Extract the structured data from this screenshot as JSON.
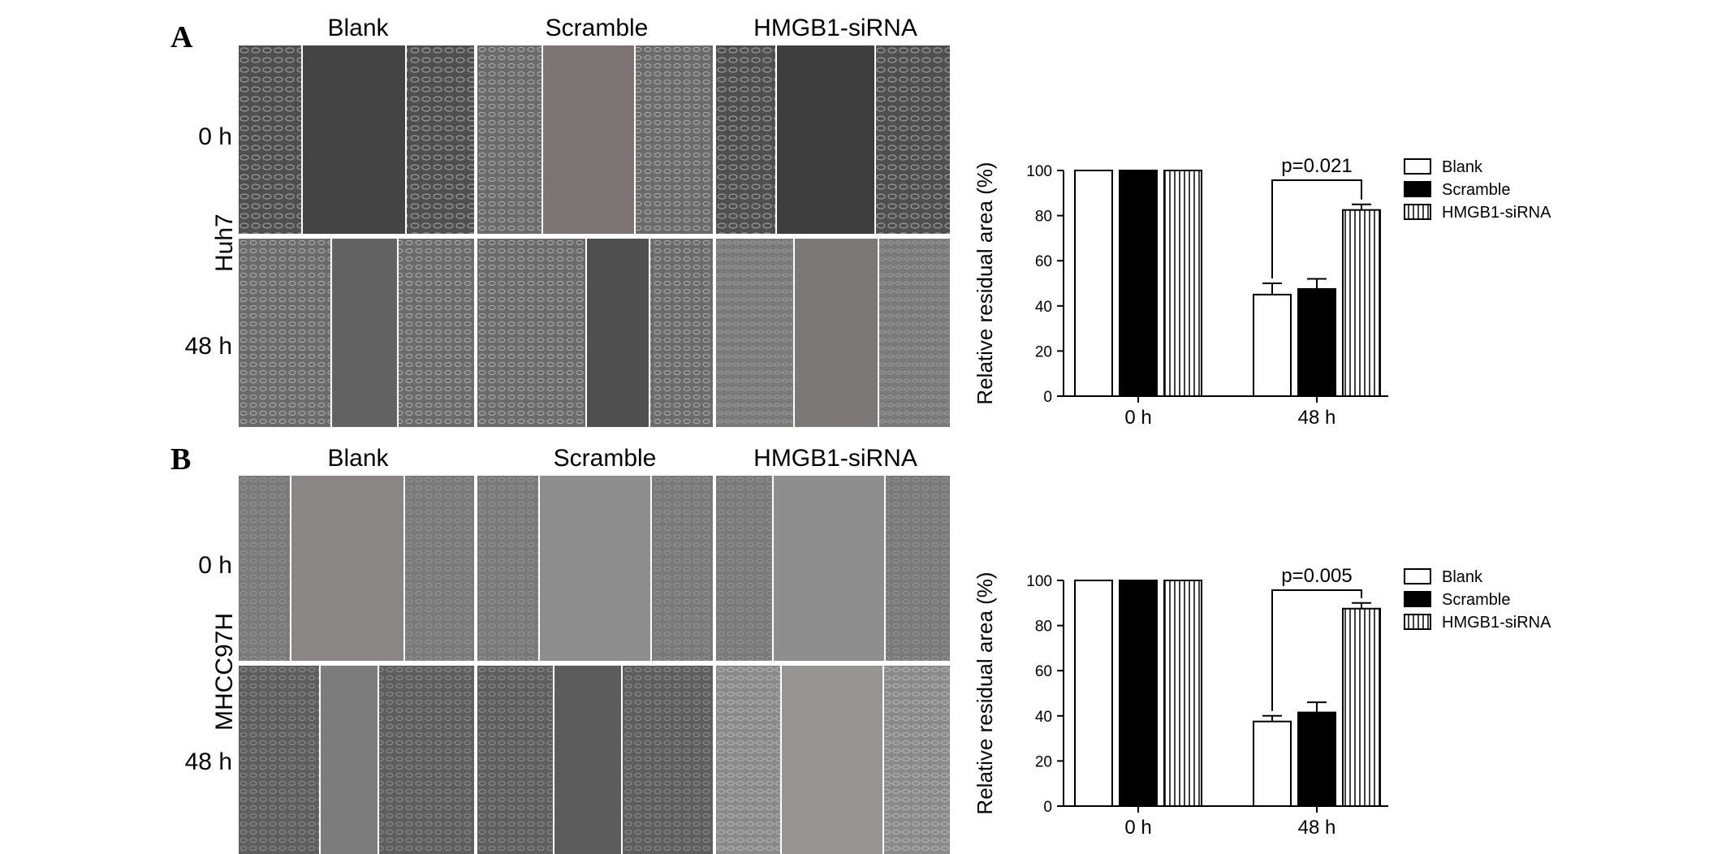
{
  "panels": [
    {
      "letter": "A",
      "cell_line": "Huh7",
      "columns": [
        "Blank",
        "Scramble",
        "HMGB1-siRNA"
      ],
      "rows": [
        "0 h",
        "48 h"
      ],
      "colors": {
        "bg_dark": "#4a4a4a",
        "bg_mid": "#6e6e6e",
        "bg_light": "#8a8a8a"
      }
    },
    {
      "letter": "B",
      "cell_line": "MHCC97H",
      "columns": [
        "Blank",
        "Scramble",
        "HMGB1-siRNA"
      ],
      "rows": [
        "0 h",
        "48 h"
      ],
      "colors": {
        "bg_dark": "#5d5d5d",
        "bg_mid": "#767676",
        "bg_light": "#8e8e8e"
      }
    }
  ],
  "chart_data": [
    {
      "type": "bar",
      "ylabel": "Relative residual area (%)",
      "ylim": [
        0,
        100
      ],
      "yticks": [
        0,
        20,
        40,
        60,
        80,
        100
      ],
      "categories": [
        "0 h",
        "48 h"
      ],
      "series": [
        {
          "name": "Blank",
          "values": [
            100,
            45
          ],
          "errors": [
            0,
            5
          ],
          "fill": "white"
        },
        {
          "name": "Scramble",
          "values": [
            100,
            47.5
          ],
          "errors": [
            0,
            4.5
          ],
          "fill": "black"
        },
        {
          "name": "HMGB1-siRNA",
          "values": [
            100,
            82.5
          ],
          "errors": [
            0,
            2.5
          ],
          "fill": "vstripe"
        }
      ],
      "annotation": "p=0.021",
      "legend": "top-right"
    },
    {
      "type": "bar",
      "ylabel": "Relative residual area (%)",
      "ylim": [
        0,
        100
      ],
      "yticks": [
        0,
        20,
        40,
        60,
        80,
        100
      ],
      "categories": [
        "0 h",
        "48 h"
      ],
      "series": [
        {
          "name": "Blank",
          "values": [
            100,
            37.5
          ],
          "errors": [
            0,
            2.5
          ],
          "fill": "white"
        },
        {
          "name": "Scramble",
          "values": [
            100,
            41.5
          ],
          "errors": [
            0,
            4.5
          ],
          "fill": "black"
        },
        {
          "name": "HMGB1-siRNA",
          "values": [
            100,
            87.5
          ],
          "errors": [
            0,
            2.5
          ],
          "fill": "vstripe"
        }
      ],
      "annotation": "p=0.005",
      "legend": "top-right"
    }
  ]
}
